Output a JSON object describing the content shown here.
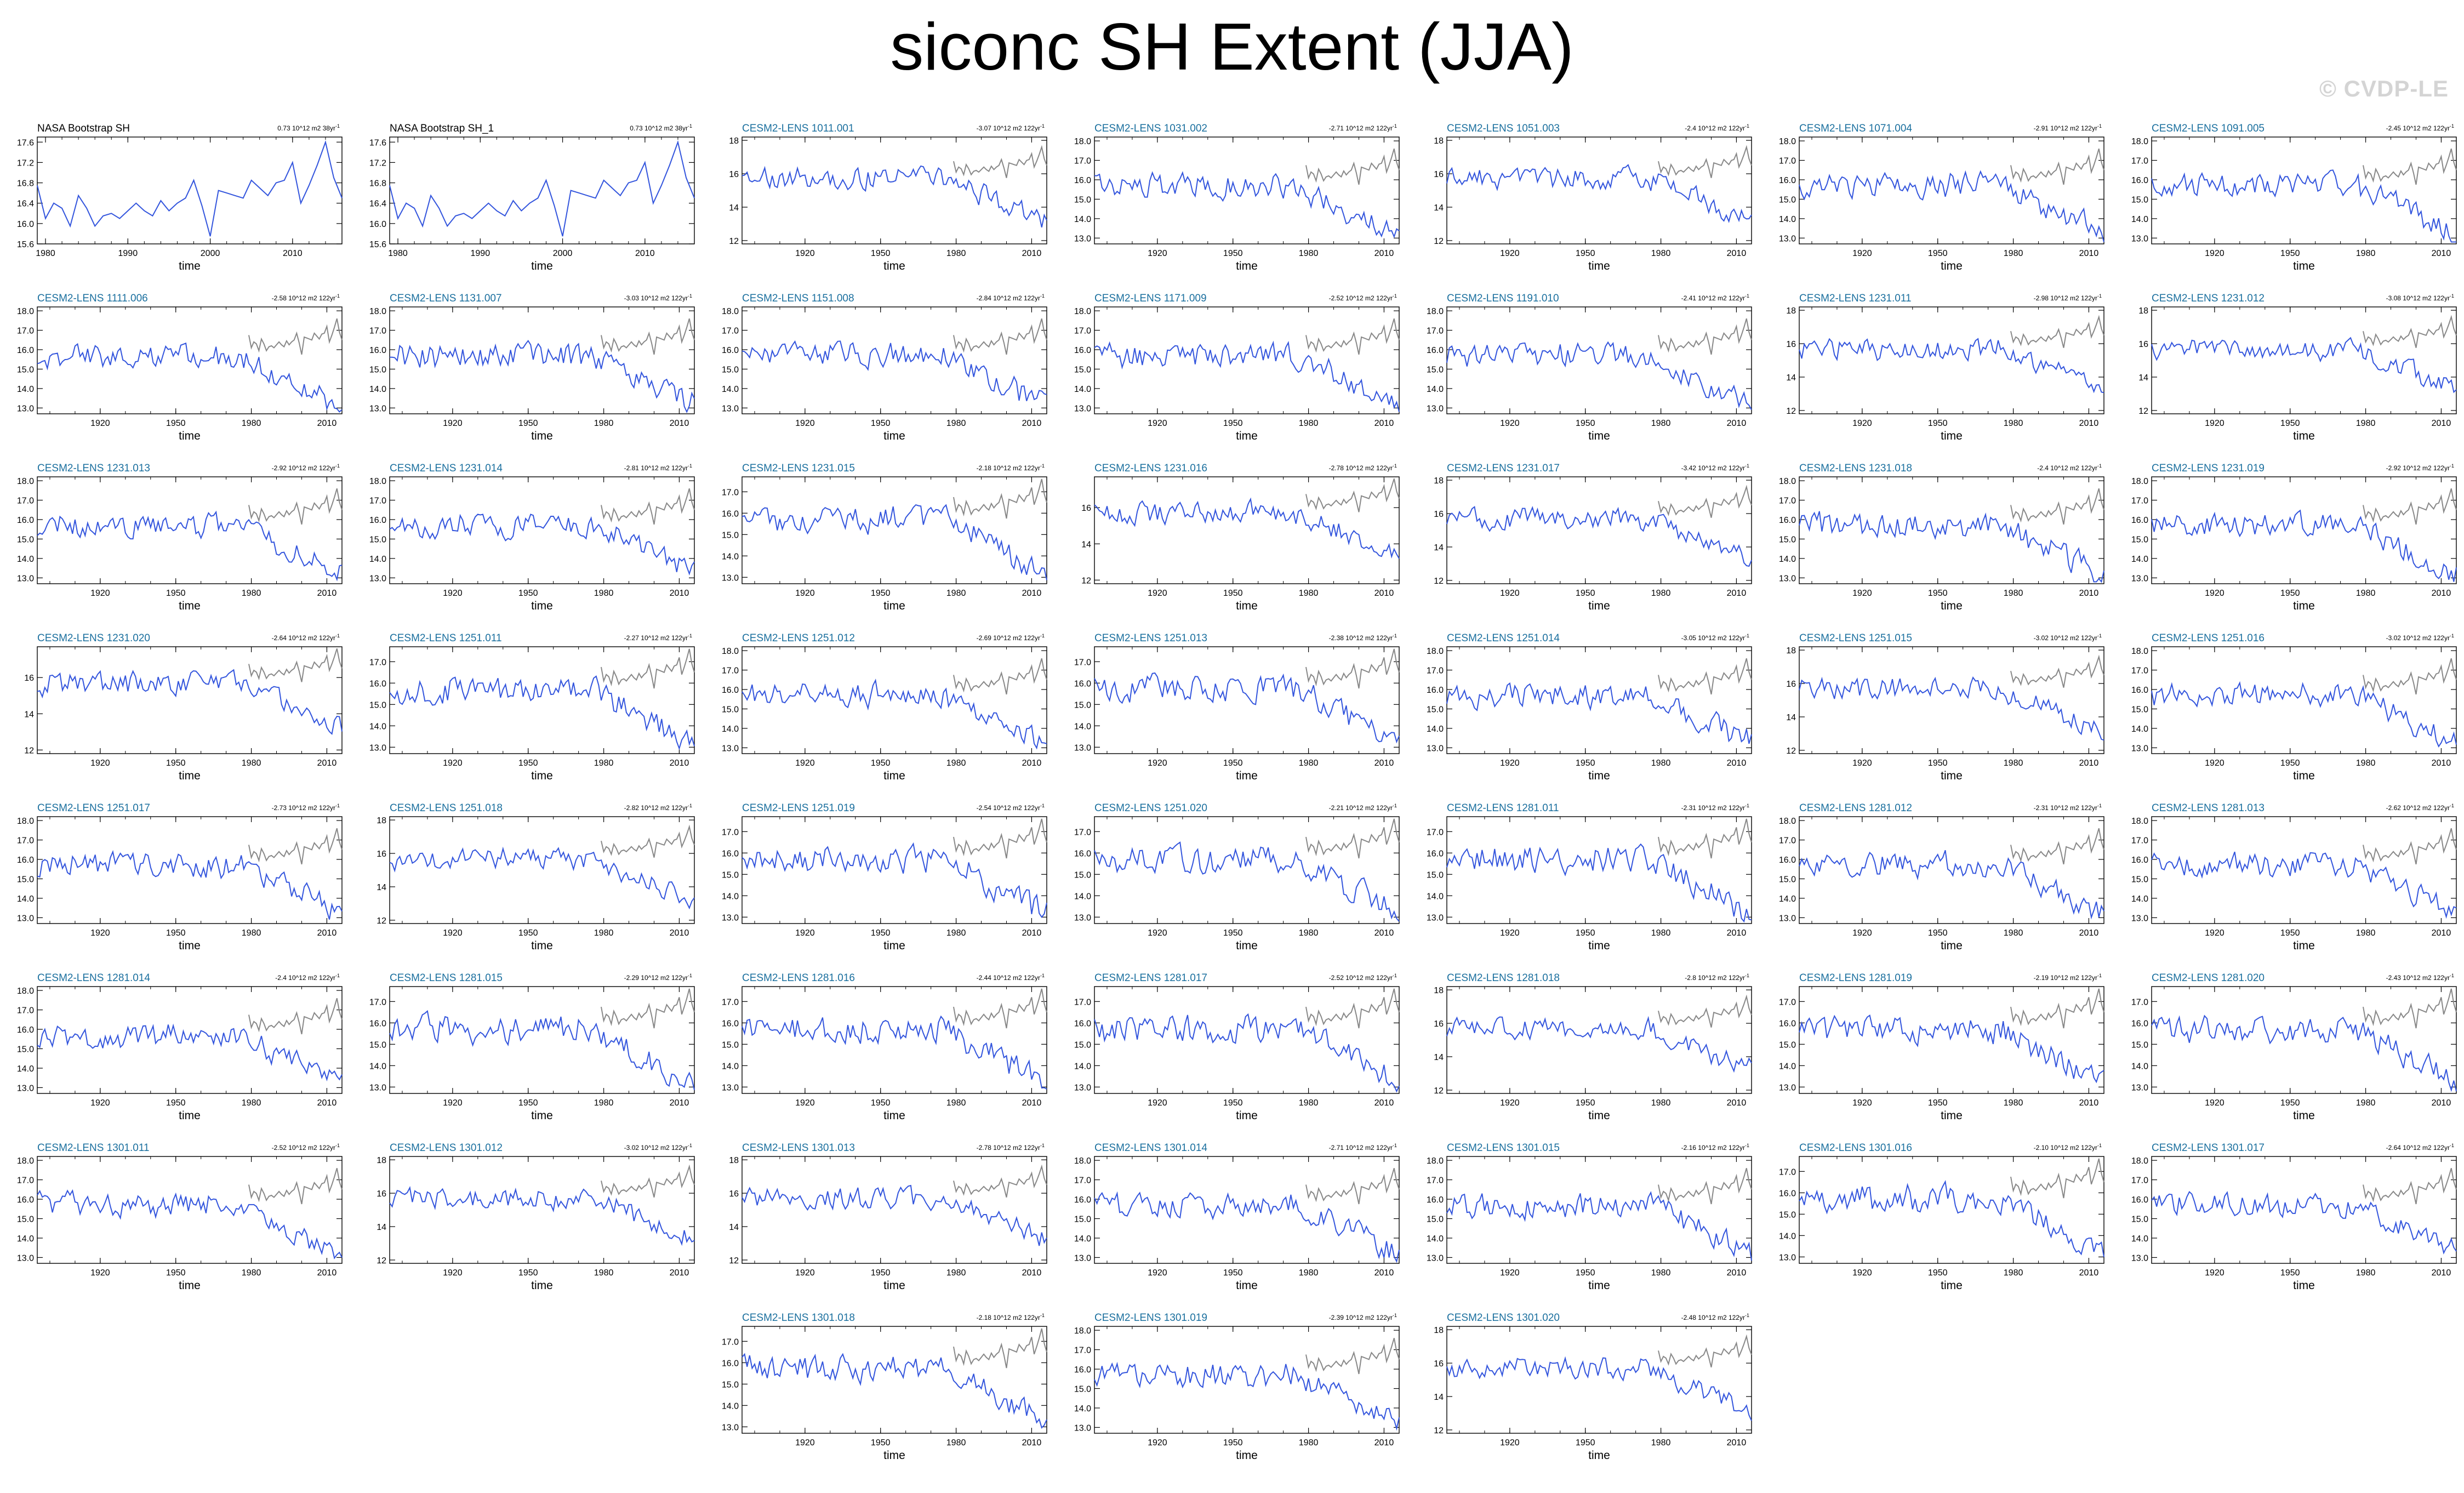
{
  "title": "siconc SH Extent (JJA)",
  "watermark": "© CVDP-LE",
  "chart_data": {
    "type": "line",
    "xlabel": "time",
    "series_colors": {
      "model": "#3355dd",
      "observed_overlay": "#888888",
      "observed": "#3355dd"
    },
    "panels": [
      {
        "name": "NASA Bootstrap SH",
        "trend": "0.73 10^12 m2 38yr",
        "observed": true,
        "xlim": [
          1979,
          2016
        ],
        "xticks": [
          1980,
          1990,
          2000,
          2010
        ],
        "ylim": [
          15.6,
          17.7
        ],
        "yticks": [
          "15.6",
          "16.0",
          "16.4",
          "16.8",
          "17.2",
          "17.6"
        ]
      },
      {
        "name": "NASA Bootstrap SH_1",
        "trend": "0.73 10^12 m2 38yr",
        "observed": true,
        "xlim": [
          1979,
          2016
        ],
        "xticks": [
          1980,
          1990,
          2000,
          2010
        ],
        "ylim": [
          15.6,
          17.7
        ],
        "yticks": [
          "15.6",
          "16.0",
          "16.4",
          "16.8",
          "17.2",
          "17.6"
        ]
      },
      {
        "name": "CESM2-LENS 1011.001",
        "trend": "-3.07 10^12 m2 122yr",
        "ylim": [
          11.8,
          18.2
        ],
        "yticks": [
          "12",
          "14",
          "16",
          "18"
        ]
      },
      {
        "name": "CESM2-LENS 1031.002",
        "trend": "-2.71 10^12 m2 122yr",
        "ylim": [
          12.7,
          18.2
        ],
        "yticks": [
          "13.0",
          "14.0",
          "15.0",
          "16.0",
          "17.0",
          "18.0"
        ]
      },
      {
        "name": "CESM2-LENS 1051.003",
        "trend": "-2.4 10^12 m2 122yr",
        "ylim": [
          11.8,
          18.2
        ],
        "yticks": [
          "12",
          "14",
          "16",
          "18"
        ]
      },
      {
        "name": "CESM2-LENS 1071.004",
        "trend": "-2.91 10^12 m2 122yr",
        "ylim": [
          12.7,
          18.2
        ],
        "yticks": [
          "13.0",
          "14.0",
          "15.0",
          "16.0",
          "17.0",
          "18.0"
        ]
      },
      {
        "name": "CESM2-LENS 1091.005",
        "trend": "-2.45 10^12 m2 122yr",
        "ylim": [
          12.7,
          18.2
        ],
        "yticks": [
          "13.0",
          "14.0",
          "15.0",
          "16.0",
          "17.0",
          "18.0"
        ]
      },
      {
        "name": "CESM2-LENS 1111.006",
        "trend": "-2.58 10^12 m2 122yr",
        "ylim": [
          12.7,
          18.2
        ],
        "yticks": [
          "13.0",
          "14.0",
          "15.0",
          "16.0",
          "17.0",
          "18.0"
        ]
      },
      {
        "name": "CESM2-LENS 1131.007",
        "trend": "-3.03 10^12 m2 122yr",
        "ylim": [
          12.7,
          18.2
        ],
        "yticks": [
          "13.0",
          "14.0",
          "15.0",
          "16.0",
          "17.0",
          "18.0"
        ]
      },
      {
        "name": "CESM2-LENS 1151.008",
        "trend": "-2.84 10^12 m2 122yr",
        "ylim": [
          12.7,
          18.2
        ],
        "yticks": [
          "13.0",
          "14.0",
          "15.0",
          "16.0",
          "17.0",
          "18.0"
        ]
      },
      {
        "name": "CESM2-LENS 1171.009",
        "trend": "-2.52 10^12 m2 122yr",
        "ylim": [
          12.7,
          18.2
        ],
        "yticks": [
          "13.0",
          "14.0",
          "15.0",
          "16.0",
          "17.0",
          "18.0"
        ]
      },
      {
        "name": "CESM2-LENS 1191.010",
        "trend": "-2.41 10^12 m2 122yr",
        "ylim": [
          12.7,
          18.2
        ],
        "yticks": [
          "13.0",
          "14.0",
          "15.0",
          "16.0",
          "17.0",
          "18.0"
        ]
      },
      {
        "name": "CESM2-LENS 1231.011",
        "trend": "-2.98 10^12 m2 122yr",
        "ylim": [
          11.8,
          18.2
        ],
        "yticks": [
          "12",
          "14",
          "16",
          "18"
        ]
      },
      {
        "name": "CESM2-LENS 1231.012",
        "trend": "-3.08 10^12 m2 122yr",
        "ylim": [
          11.8,
          18.2
        ],
        "yticks": [
          "12",
          "14",
          "16",
          "18"
        ]
      },
      {
        "name": "CESM2-LENS 1231.013",
        "trend": "-2.92 10^12 m2 122yr",
        "ylim": [
          12.7,
          18.2
        ],
        "yticks": [
          "13.0",
          "14.0",
          "15.0",
          "16.0",
          "17.0",
          "18.0"
        ]
      },
      {
        "name": "CESM2-LENS 1231.014",
        "trend": "-2.81 10^12 m2 122yr",
        "ylim": [
          12.7,
          18.2
        ],
        "yticks": [
          "13.0",
          "14.0",
          "15.0",
          "16.0",
          "17.0",
          "18.0"
        ]
      },
      {
        "name": "CESM2-LENS 1231.015",
        "trend": "-2.18 10^12 m2 122yr",
        "ylim": [
          12.7,
          17.7
        ],
        "yticks": [
          "13.0",
          "14.0",
          "15.0",
          "16.0",
          "17.0"
        ]
      },
      {
        "name": "CESM2-LENS 1231.016",
        "trend": "-2.78 10^12 m2 122yr",
        "ylim": [
          11.8,
          17.7
        ],
        "yticks": [
          "12",
          "14",
          "16"
        ]
      },
      {
        "name": "CESM2-LENS 1231.017",
        "trend": "-3.42 10^12 m2 122yr",
        "ylim": [
          11.8,
          18.2
        ],
        "yticks": [
          "12",
          "14",
          "16",
          "18"
        ]
      },
      {
        "name": "CESM2-LENS 1231.018",
        "trend": "-2.4 10^12 m2 122yr",
        "ylim": [
          12.7,
          18.2
        ],
        "yticks": [
          "13.0",
          "14.0",
          "15.0",
          "16.0",
          "17.0",
          "18.0"
        ]
      },
      {
        "name": "CESM2-LENS 1231.019",
        "trend": "-2.92 10^12 m2 122yr",
        "ylim": [
          12.7,
          18.2
        ],
        "yticks": [
          "13.0",
          "14.0",
          "15.0",
          "16.0",
          "17.0",
          "18.0"
        ]
      },
      {
        "name": "CESM2-LENS 1231.020",
        "trend": "-2.64 10^12 m2 122yr",
        "ylim": [
          11.8,
          17.7
        ],
        "yticks": [
          "12",
          "14",
          "16"
        ]
      },
      {
        "name": "CESM2-LENS 1251.011",
        "trend": "-2.27 10^12 m2 122yr",
        "ylim": [
          12.7,
          17.7
        ],
        "yticks": [
          "13.0",
          "14.0",
          "15.0",
          "16.0",
          "17.0"
        ]
      },
      {
        "name": "CESM2-LENS 1251.012",
        "trend": "-2.69 10^12 m2 122yr",
        "ylim": [
          12.7,
          18.2
        ],
        "yticks": [
          "13.0",
          "14.0",
          "15.0",
          "16.0",
          "17.0",
          "18.0"
        ]
      },
      {
        "name": "CESM2-LENS 1251.013",
        "trend": "-2.38 10^12 m2 122yr",
        "ylim": [
          12.7,
          17.7
        ],
        "yticks": [
          "13.0",
          "14.0",
          "15.0",
          "16.0",
          "17.0"
        ]
      },
      {
        "name": "CESM2-LENS 1251.014",
        "trend": "-3.05 10^12 m2 122yr",
        "ylim": [
          12.7,
          18.2
        ],
        "yticks": [
          "13.0",
          "14.0",
          "15.0",
          "16.0",
          "17.0",
          "18.0"
        ]
      },
      {
        "name": "CESM2-LENS 1251.015",
        "trend": "-3.02 10^12 m2 122yr",
        "ylim": [
          11.8,
          18.2
        ],
        "yticks": [
          "12",
          "14",
          "16",
          "18"
        ]
      },
      {
        "name": "CESM2-LENS 1251.016",
        "trend": "-3.02 10^12 m2 122yr",
        "ylim": [
          12.7,
          18.2
        ],
        "yticks": [
          "13.0",
          "14.0",
          "15.0",
          "16.0",
          "17.0",
          "18.0"
        ]
      },
      {
        "name": "CESM2-LENS 1251.017",
        "trend": "-2.73 10^12 m2 122yr",
        "ylim": [
          12.7,
          18.2
        ],
        "yticks": [
          "13.0",
          "14.0",
          "15.0",
          "16.0",
          "17.0",
          "18.0"
        ]
      },
      {
        "name": "CESM2-LENS 1251.018",
        "trend": "-2.82 10^12 m2 122yr",
        "ylim": [
          11.8,
          18.2
        ],
        "yticks": [
          "12",
          "14",
          "16",
          "18"
        ]
      },
      {
        "name": "CESM2-LENS 1251.019",
        "trend": "-2.54 10^12 m2 122yr",
        "ylim": [
          12.7,
          17.7
        ],
        "yticks": [
          "13.0",
          "14.0",
          "15.0",
          "16.0",
          "17.0"
        ]
      },
      {
        "name": "CESM2-LENS 1251.020",
        "trend": "-2.21 10^12 m2 122yr",
        "ylim": [
          12.7,
          17.7
        ],
        "yticks": [
          "13.0",
          "14.0",
          "15.0",
          "16.0",
          "17.0"
        ]
      },
      {
        "name": "CESM2-LENS 1281.011",
        "trend": "-2.31 10^12 m2 122yr",
        "ylim": [
          12.7,
          17.7
        ],
        "yticks": [
          "13.0",
          "14.0",
          "15.0",
          "16.0",
          "17.0"
        ]
      },
      {
        "name": "CESM2-LENS 1281.012",
        "trend": "-2.31 10^12 m2 122yr",
        "ylim": [
          12.7,
          18.2
        ],
        "yticks": [
          "13.0",
          "14.0",
          "15.0",
          "16.0",
          "17.0",
          "18.0"
        ]
      },
      {
        "name": "CESM2-LENS 1281.013",
        "trend": "-2.62 10^12 m2 122yr",
        "ylim": [
          12.7,
          18.2
        ],
        "yticks": [
          "13.0",
          "14.0",
          "15.0",
          "16.0",
          "17.0",
          "18.0"
        ]
      },
      {
        "name": "CESM2-LENS 1281.014",
        "trend": "-2.4 10^12 m2 122yr",
        "ylim": [
          12.7,
          18.2
        ],
        "yticks": [
          "13.0",
          "14.0",
          "15.0",
          "16.0",
          "17.0",
          "18.0"
        ]
      },
      {
        "name": "CESM2-LENS 1281.015",
        "trend": "-2.29 10^12 m2 122yr",
        "ylim": [
          12.7,
          17.7
        ],
        "yticks": [
          "13.0",
          "14.0",
          "15.0",
          "16.0",
          "17.0"
        ]
      },
      {
        "name": "CESM2-LENS 1281.016",
        "trend": "-2.44 10^12 m2 122yr",
        "ylim": [
          12.7,
          17.7
        ],
        "yticks": [
          "13.0",
          "14.0",
          "15.0",
          "16.0",
          "17.0"
        ]
      },
      {
        "name": "CESM2-LENS 1281.017",
        "trend": "-2.52 10^12 m2 122yr",
        "ylim": [
          12.7,
          17.7
        ],
        "yticks": [
          "13.0",
          "14.0",
          "15.0",
          "16.0",
          "17.0"
        ]
      },
      {
        "name": "CESM2-LENS 1281.018",
        "trend": "-2.8 10^12 m2 122yr",
        "ylim": [
          11.8,
          18.2
        ],
        "yticks": [
          "12",
          "14",
          "16",
          "18"
        ]
      },
      {
        "name": "CESM2-LENS 1281.019",
        "trend": "-2.19 10^12 m2 122yr",
        "ylim": [
          12.7,
          17.7
        ],
        "yticks": [
          "13.0",
          "14.0",
          "15.0",
          "16.0",
          "17.0"
        ]
      },
      {
        "name": "CESM2-LENS 1281.020",
        "trend": "-2.43 10^12 m2 122yr",
        "ylim": [
          12.7,
          17.7
        ],
        "yticks": [
          "13.0",
          "14.0",
          "15.0",
          "16.0",
          "17.0"
        ]
      },
      {
        "name": "CESM2-LENS 1301.011",
        "trend": "-2.52 10^12 m2 122yr",
        "ylim": [
          12.7,
          18.2
        ],
        "yticks": [
          "13.0",
          "14.0",
          "15.0",
          "16.0",
          "17.0",
          "18.0"
        ]
      },
      {
        "name": "CESM2-LENS 1301.012",
        "trend": "-3.02 10^12 m2 122yr",
        "ylim": [
          11.8,
          18.2
        ],
        "yticks": [
          "12",
          "14",
          "16",
          "18"
        ]
      },
      {
        "name": "CESM2-LENS 1301.013",
        "trend": "-2.78 10^12 m2 122yr",
        "ylim": [
          11.8,
          18.2
        ],
        "yticks": [
          "12",
          "14",
          "16",
          "18"
        ]
      },
      {
        "name": "CESM2-LENS 1301.014",
        "trend": "-2.71 10^12 m2 122yr",
        "ylim": [
          12.7,
          18.2
        ],
        "yticks": [
          "13.0",
          "14.0",
          "15.0",
          "16.0",
          "17.0",
          "18.0"
        ]
      },
      {
        "name": "CESM2-LENS 1301.015",
        "trend": "-2.16 10^12 m2 122yr",
        "ylim": [
          12.7,
          18.2
        ],
        "yticks": [
          "13.0",
          "14.0",
          "15.0",
          "16.0",
          "17.0",
          "18.0"
        ]
      },
      {
        "name": "CESM2-LENS 1301.016",
        "trend": "-2.10 10^12 m2 122yr",
        "ylim": [
          12.7,
          17.7
        ],
        "yticks": [
          "13.0",
          "14.0",
          "15.0",
          "16.0",
          "17.0"
        ]
      },
      {
        "name": "CESM2-LENS 1301.017",
        "trend": "-2.64 10^12 m2 122yr",
        "ylim": [
          12.7,
          18.2
        ],
        "yticks": [
          "13.0",
          "14.0",
          "15.0",
          "16.0",
          "17.0",
          "18.0"
        ]
      },
      {
        "name": "CESM2-LENS 1301.018",
        "trend": "-2.18 10^12 m2 122yr",
        "ylim": [
          12.7,
          17.7
        ],
        "yticks": [
          "13.0",
          "14.0",
          "15.0",
          "16.0",
          "17.0"
        ]
      },
      {
        "name": "CESM2-LENS 1301.019",
        "trend": "-2.39 10^12 m2 122yr",
        "ylim": [
          12.7,
          18.2
        ],
        "yticks": [
          "13.0",
          "14.0",
          "15.0",
          "16.0",
          "17.0",
          "18.0"
        ]
      },
      {
        "name": "CESM2-LENS 1301.020",
        "trend": "-2.48 10^12 m2 122yr",
        "ylim": [
          11.8,
          18.2
        ],
        "yticks": [
          "12",
          "14",
          "16",
          "18"
        ]
      }
    ],
    "model_xlim": [
      1895,
      2016
    ],
    "model_xticks": [
      1920,
      1950,
      1980,
      2010
    ],
    "observed_series": {
      "x": [
        1979,
        1980,
        1981,
        1982,
        1983,
        1984,
        1985,
        1986,
        1987,
        1988,
        1989,
        1990,
        1991,
        1992,
        1993,
        1994,
        1995,
        1996,
        1997,
        1998,
        1999,
        2000,
        2001,
        2002,
        2003,
        2004,
        2005,
        2006,
        2007,
        2008,
        2009,
        2010,
        2011,
        2012,
        2013,
        2014,
        2015,
        2016
      ],
      "y": [
        16.75,
        16.1,
        16.4,
        16.3,
        15.95,
        16.55,
        16.3,
        15.95,
        16.15,
        16.2,
        16.1,
        16.25,
        16.4,
        16.25,
        16.15,
        16.45,
        16.25,
        16.4,
        16.5,
        16.85,
        16.35,
        15.75,
        16.65,
        16.6,
        16.55,
        16.5,
        16.85,
        16.7,
        16.55,
        16.8,
        16.85,
        17.2,
        16.4,
        16.75,
        17.15,
        17.6,
        16.9,
        16.5
      ]
    }
  }
}
